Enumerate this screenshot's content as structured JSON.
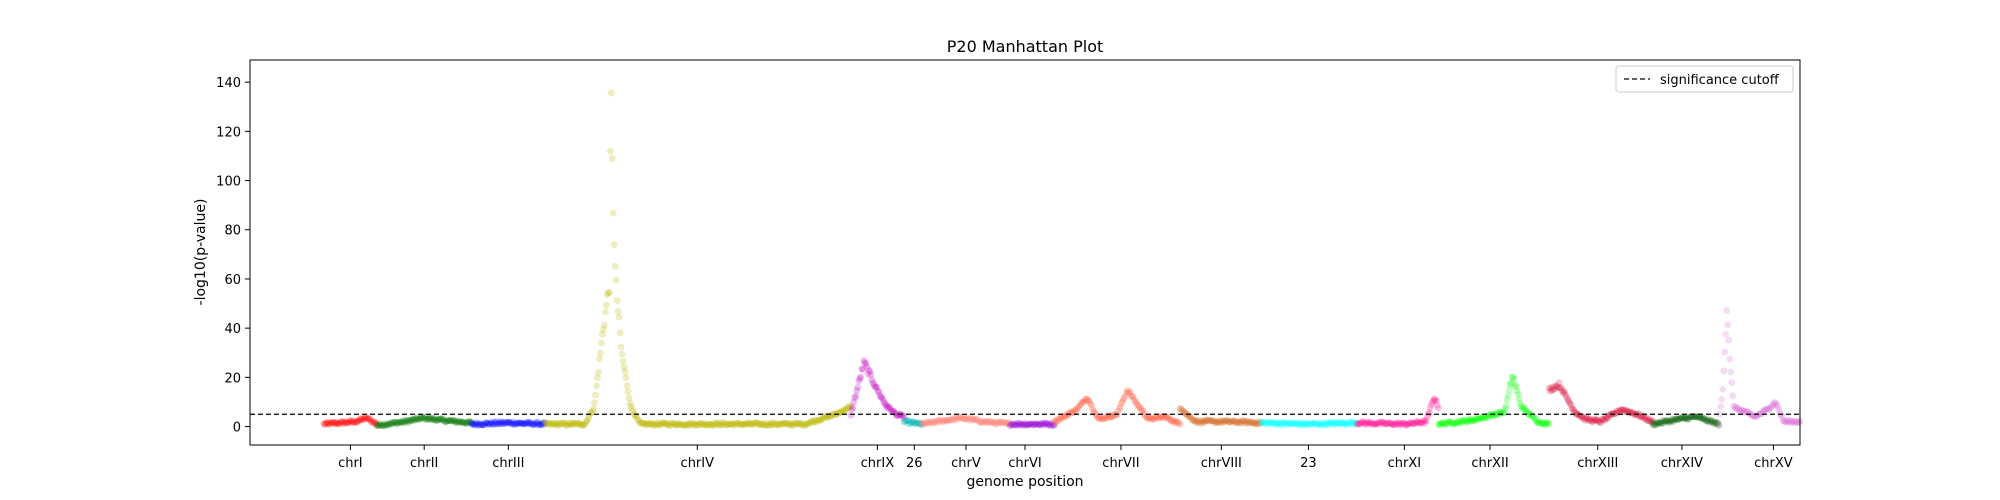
{
  "chart_data": {
    "type": "scatter",
    "title": "P20 Manhattan Plot",
    "xlabel": "genome position",
    "ylabel": "-log10(p-value)",
    "ylim": [
      -7.5,
      149
    ],
    "yticks": [
      0,
      20,
      40,
      60,
      80,
      100,
      120,
      140
    ],
    "grid": false,
    "legend": {
      "position": "top-right",
      "entries": [
        {
          "label": "significance cutoff",
          "style": "dashed",
          "color": "#000000"
        }
      ]
    },
    "significance_cutoff": 5,
    "xlim": [
      -0.05,
      1.0
    ],
    "chromosomes": [
      {
        "label": "chrI",
        "color": "#ff0000",
        "start": 0.0,
        "end": 0.036,
        "tick": 0.018,
        "profile": [
          [
            0,
            1
          ],
          [
            0.6,
            2
          ],
          [
            0.8,
            3.5
          ],
          [
            1,
            1
          ]
        ]
      },
      {
        "label": "chrII",
        "color": "#007400",
        "start": 0.036,
        "end": 0.1,
        "tick": 0.068,
        "profile": [
          [
            0,
            0.5
          ],
          [
            0.3,
            2
          ],
          [
            0.5,
            3.5
          ],
          [
            0.7,
            2.5
          ],
          [
            1,
            1.5
          ]
        ]
      },
      {
        "label": "chrIII",
        "color": "#0000ff",
        "start": 0.1,
        "end": 0.15,
        "tick": 0.125,
        "profile": [
          [
            0,
            1
          ],
          [
            0.5,
            1.5
          ],
          [
            1,
            1
          ]
        ]
      },
      {
        "label": "chrIV",
        "color": "#bdb700",
        "start": 0.15,
        "end": 0.357,
        "tick": 0.253,
        "profile": [
          [
            0,
            1
          ],
          [
            0.13,
            1
          ],
          [
            0.16,
            8
          ],
          [
            0.19,
            40
          ],
          [
            0.21,
            58
          ],
          [
            0.215,
            140
          ],
          [
            0.22,
            100
          ],
          [
            0.23,
            60
          ],
          [
            0.25,
            30
          ],
          [
            0.28,
            8
          ],
          [
            0.31,
            1
          ],
          [
            0.85,
            1
          ],
          [
            0.9,
            3
          ],
          [
            0.95,
            5
          ],
          [
            1,
            8
          ]
        ]
      },
      {
        "label": "chrIX",
        "color": "#c000c0",
        "start": 0.357,
        "end": 0.393,
        "tick": 0.375,
        "profile": [
          [
            0,
            5
          ],
          [
            0.25,
            26
          ],
          [
            0.45,
            17
          ],
          [
            0.65,
            9
          ],
          [
            0.85,
            5
          ],
          [
            1,
            4
          ]
        ]
      },
      {
        "label": "26",
        "color": "#00b5b5",
        "start": 0.393,
        "end": 0.405,
        "tick": 0.4,
        "profile": [
          [
            0,
            2
          ],
          [
            1,
            1
          ]
        ]
      },
      {
        "label": "chrV",
        "color": "#fa8072",
        "start": 0.405,
        "end": 0.465,
        "tick": 0.435,
        "profile": [
          [
            0,
            1
          ],
          [
            0.45,
            3.5
          ],
          [
            0.7,
            2
          ],
          [
            1,
            1
          ]
        ]
      },
      {
        "label": "chrVI",
        "color": "#9400d3",
        "start": 0.465,
        "end": 0.495,
        "tick": 0.475,
        "profile": [
          [
            0,
            1
          ],
          [
            1,
            1
          ]
        ]
      },
      {
        "label": "chrVII",
        "color": "#ff6347",
        "start": 0.495,
        "end": 0.58,
        "tick": 0.54,
        "profile": [
          [
            0,
            2
          ],
          [
            0.18,
            7
          ],
          [
            0.26,
            12
          ],
          [
            0.35,
            3
          ],
          [
            0.5,
            5
          ],
          [
            0.58,
            15
          ],
          [
            0.66,
            9
          ],
          [
            0.75,
            3
          ],
          [
            0.88,
            4
          ],
          [
            1,
            1
          ]
        ]
      },
      {
        "label": "chrVIII",
        "color": "#d2691e",
        "start": 0.58,
        "end": 0.635,
        "tick": 0.608,
        "profile": [
          [
            0,
            8
          ],
          [
            0.08,
            5
          ],
          [
            0.2,
            2
          ],
          [
            0.6,
            2
          ],
          [
            1,
            1.5
          ]
        ]
      },
      {
        "label": "23",
        "color": "#00ffff",
        "start": 0.635,
        "end": 0.7,
        "tick": 0.667,
        "profile": [
          [
            0,
            1.5
          ],
          [
            0.5,
            1
          ],
          [
            1,
            1.5
          ]
        ]
      },
      {
        "label": "chrXI",
        "color": "#ff1493",
        "start": 0.7,
        "end": 0.755,
        "tick": 0.732,
        "profile": [
          [
            0,
            1.5
          ],
          [
            0.6,
            1
          ],
          [
            0.85,
            2
          ],
          [
            0.95,
            12
          ],
          [
            1,
            8
          ]
        ]
      },
      {
        "label": "chrXII",
        "color": "#00ff00",
        "start": 0.755,
        "end": 0.83,
        "tick": 0.79,
        "profile": [
          [
            0,
            1
          ],
          [
            0.3,
            2.5
          ],
          [
            0.6,
            6
          ],
          [
            0.67,
            21
          ],
          [
            0.75,
            8
          ],
          [
            0.9,
            2
          ],
          [
            1,
            1
          ]
        ]
      },
      {
        "label": "chrXIII",
        "color": "#dc143c",
        "start": 0.83,
        "end": 0.9,
        "tick": 0.863,
        "profile": [
          [
            0,
            15
          ],
          [
            0.1,
            17
          ],
          [
            0.25,
            6
          ],
          [
            0.35,
            3
          ],
          [
            0.5,
            2
          ],
          [
            0.7,
            7
          ],
          [
            0.85,
            5
          ],
          [
            1,
            2
          ]
        ]
      },
      {
        "label": "chrXIV",
        "color": "#005a00",
        "start": 0.9,
        "end": 0.945,
        "tick": 0.92,
        "profile": [
          [
            0,
            1
          ],
          [
            0.4,
            3
          ],
          [
            0.65,
            4
          ],
          [
            1,
            1
          ]
        ]
      },
      {
        "label": "chrXV",
        "color": "#da70d6",
        "start": 0.945,
        "end": 1.0,
        "tick": 0.982,
        "profile": [
          [
            0,
            1
          ],
          [
            0.05,
            15
          ],
          [
            0.1,
            50
          ],
          [
            0.13,
            30
          ],
          [
            0.18,
            8
          ],
          [
            0.45,
            4
          ],
          [
            0.6,
            7
          ],
          [
            0.7,
            10
          ],
          [
            0.8,
            2
          ],
          [
            1,
            2
          ]
        ]
      }
    ]
  }
}
